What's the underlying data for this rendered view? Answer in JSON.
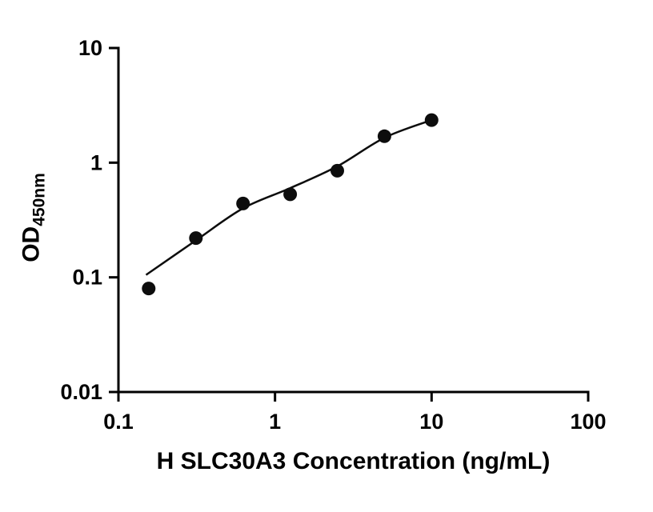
{
  "chart_data": {
    "type": "scatter",
    "title": "",
    "xlabel": "H SLC30A3 Concentration (ng/mL)",
    "ylabel": "OD",
    "ylabel_subscript": "450nm",
    "x_scale": "log",
    "y_scale": "log",
    "xlim": [
      0.1,
      100
    ],
    "ylim": [
      0.01,
      10
    ],
    "x_ticks": [
      0.1,
      1,
      10,
      100
    ],
    "x_tick_labels": [
      "0.1",
      "1",
      "10",
      "100"
    ],
    "y_ticks": [
      0.01,
      0.1,
      1,
      10
    ],
    "y_tick_labels": [
      "0.01",
      "0.1",
      "1",
      "10"
    ],
    "grid": false,
    "legend": false,
    "x": [
      0.156,
      0.3125,
      0.625,
      1.25,
      2.5,
      5,
      10
    ],
    "y": [
      0.08,
      0.22,
      0.44,
      0.53,
      0.85,
      1.7,
      2.35
    ],
    "fit_curve": {
      "x": [
        0.15,
        0.3125,
        0.625,
        1.25,
        2.5,
        5,
        10
      ],
      "y": [
        0.105,
        0.21,
        0.4,
        0.6,
        0.93,
        1.65,
        2.35
      ]
    },
    "marker_color": "#0d0d0d",
    "line_color": "#0d0d0d",
    "axis_color": "#000000",
    "background_color": "#ffffff"
  }
}
